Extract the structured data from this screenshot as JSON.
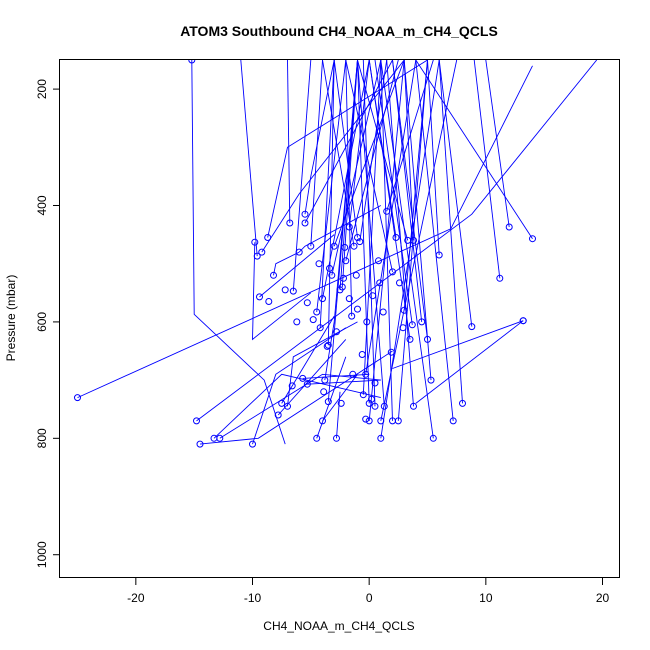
{
  "chart_data": {
    "type": "line",
    "title": "ATOM3 Southbound CH4_NOAA_m_CH4_QCLS",
    "xlabel": "CH4_NOAA_m_CH4_QCLS",
    "ylabel": "Pressure (mbar)",
    "xlim": [
      -26.5,
      21.5
    ],
    "ylim": [
      1040,
      150
    ],
    "y_reversed": true,
    "x_ticks": [
      -20,
      -10,
      0,
      10,
      20
    ],
    "x_tick_labels": [
      "-20",
      "-10",
      "0",
      "10",
      "20"
    ],
    "y_ticks": [
      200,
      400,
      600,
      800,
      1000
    ],
    "y_tick_labels": [
      "200",
      "400",
      "600",
      "800",
      "1000"
    ],
    "grid": false,
    "legend": "none",
    "color": "#0000ff",
    "marker": "open-circle",
    "series": [
      {
        "x": [
          -25.0,
          7.0,
          14.0
        ],
        "y": [
          730,
          440,
          160
        ]
      },
      {
        "x": [
          -15.2,
          -15.0,
          -9.0,
          -7.2
        ],
        "y": [
          150,
          587,
          700,
          810
        ]
      },
      {
        "x": [
          -14.8,
          8.8,
          19.5
        ],
        "y": [
          770,
          415,
          150
        ]
      },
      {
        "x": [
          -14.5,
          -9.5,
          2.0
        ],
        "y": [
          810,
          800,
          650
        ]
      },
      {
        "x": [
          -13.3,
          -7.5,
          1.0
        ],
        "y": [
          800,
          690,
          730
        ]
      },
      {
        "x": [
          -12.8,
          -4.0,
          1.0
        ],
        "y": [
          800,
          690,
          700
        ]
      },
      {
        "x": [
          -10.0,
          -8.0,
          -2.0
        ],
        "y": [
          810,
          690,
          610
        ]
      },
      {
        "x": [
          -9.8,
          -10.0,
          -5.0
        ],
        "y": [
          463,
          630,
          550
        ]
      },
      {
        "x": [
          -9.6,
          -11.0
        ],
        "y": [
          487,
          150
        ]
      },
      {
        "x": [
          -9.4,
          -3.0
        ],
        "y": [
          557,
          450
        ]
      },
      {
        "x": [
          -8.7,
          -7.0,
          5.0
        ],
        "y": [
          455,
          300,
          150
        ]
      },
      {
        "x": [
          -9.2,
          -6.0,
          3.0
        ],
        "y": [
          480,
          380,
          150
        ]
      },
      {
        "x": [
          -8.2,
          -8.0,
          -6.0
        ],
        "y": [
          520,
          500,
          480
        ]
      },
      {
        "x": [
          -7.8,
          -2.0
        ],
        "y": [
          760,
          630
        ]
      },
      {
        "x": [
          -7.5,
          -3.0
        ],
        "y": [
          740,
          590
        ]
      },
      {
        "x": [
          -7.0,
          -6.5,
          -1.0
        ],
        "y": [
          745,
          660,
          600
        ]
      },
      {
        "x": [
          -6.8,
          -7.0
        ],
        "y": [
          430,
          150
        ]
      },
      {
        "x": [
          -6.5,
          -5.0
        ],
        "y": [
          547,
          150
        ]
      },
      {
        "x": [
          -6.0,
          -5.5,
          1.0
        ],
        "y": [
          480,
          470,
          400
        ]
      },
      {
        "x": [
          -5.5,
          -5.0,
          -3.0
        ],
        "y": [
          415,
          350,
          150
        ]
      },
      {
        "x": [
          -5.7,
          0.0
        ],
        "y": [
          697,
          690
        ]
      },
      {
        "x": [
          -5.5,
          2.0
        ],
        "y": [
          430,
          150
        ]
      },
      {
        "x": [
          -5.0,
          -4.0
        ],
        "y": [
          470,
          150
        ]
      },
      {
        "x": [
          -5.3,
          1.0
        ],
        "y": [
          707,
          700
        ]
      },
      {
        "x": [
          -4.5,
          -2.0
        ],
        "y": [
          800,
          660
        ]
      },
      {
        "x": [
          -4.5,
          -2.0
        ],
        "y": [
          583,
          150
        ]
      },
      {
        "x": [
          -4.2,
          -3.0
        ],
        "y": [
          610,
          150
        ]
      },
      {
        "x": [
          -4.0,
          -1.0
        ],
        "y": [
          770,
          690
        ]
      },
      {
        "x": [
          -3.8,
          -3.0,
          -1.0
        ],
        "y": [
          700,
          600,
          150
        ]
      },
      {
        "x": [
          -4.0,
          0.0
        ],
        "y": [
          560,
          150
        ]
      },
      {
        "x": [
          -3.5,
          -3.0
        ],
        "y": [
          640,
          150
        ]
      },
      {
        "x": [
          -3.5,
          -1.0
        ],
        "y": [
          737,
          150
        ]
      },
      {
        "x": [
          -3.2,
          1.0
        ],
        "y": [
          520,
          150
        ]
      },
      {
        "x": [
          -3.0,
          3.0
        ],
        "y": [
          470,
          150
        ]
      },
      {
        "x": [
          -2.8,
          -2.5
        ],
        "y": [
          800,
          720
        ]
      },
      {
        "x": [
          -2.5,
          -1.0
        ],
        "y": [
          545,
          150
        ]
      },
      {
        "x": [
          -2.3,
          -1.0
        ],
        "y": [
          540,
          150
        ]
      },
      {
        "x": [
          -2.0,
          2.5
        ],
        "y": [
          495,
          150
        ]
      },
      {
        "x": [
          -1.5,
          -2.0
        ],
        "y": [
          590,
          150
        ]
      },
      {
        "x": [
          -1.7,
          0.0
        ],
        "y": [
          437,
          150
        ]
      },
      {
        "x": [
          -1.3,
          -4.0
        ],
        "y": [
          470,
          150
        ]
      },
      {
        "x": [
          -1.0,
          -3.0
        ],
        "y": [
          455,
          150
        ]
      },
      {
        "x": [
          -0.8,
          1.5
        ],
        "y": [
          462,
          150
        ]
      },
      {
        "x": [
          -0.5,
          1.0
        ],
        "y": [
          725,
          150
        ]
      },
      {
        "x": [
          -0.3,
          4.0
        ],
        "y": [
          690,
          150
        ]
      },
      {
        "x": [
          0.0,
          -1.0
        ],
        "y": [
          740,
          150
        ]
      },
      {
        "x": [
          0.0,
          3.0
        ],
        "y": [
          770,
          150
        ]
      },
      {
        "x": [
          0.5,
          -0.5
        ],
        "y": [
          745,
          150
        ]
      },
      {
        "x": [
          1.0,
          6.0
        ],
        "y": [
          800,
          150
        ]
      },
      {
        "x": [
          1.0,
          7.5
        ],
        "y": [
          770,
          150
        ]
      },
      {
        "x": [
          1.3,
          -1.0
        ],
        "y": [
          745,
          150
        ]
      },
      {
        "x": [
          1.5,
          5.5
        ],
        "y": [
          410,
          150
        ]
      },
      {
        "x": [
          2.0,
          1.0
        ],
        "y": [
          770,
          150
        ]
      },
      {
        "x": [
          2.0,
          -2.0
        ],
        "y": [
          514,
          150
        ]
      },
      {
        "x": [
          2.3,
          0.0
        ],
        "y": [
          455,
          150
        ]
      },
      {
        "x": [
          2.5,
          5.0
        ],
        "y": [
          770,
          150
        ]
      },
      {
        "x": [
          3.0,
          5.0
        ],
        "y": [
          580,
          150
        ]
      },
      {
        "x": [
          3.3,
          -1.0
        ],
        "y": [
          460,
          150
        ]
      },
      {
        "x": [
          3.5,
          0.0
        ],
        "y": [
          630,
          150
        ]
      },
      {
        "x": [
          3.7,
          0.5
        ],
        "y": [
          605,
          150
        ]
      },
      {
        "x": [
          3.8,
          1.5
        ],
        "y": [
          745,
          150
        ]
      },
      {
        "x": [
          3.8,
          3.0
        ],
        "y": [
          460,
          150
        ]
      },
      {
        "x": [
          4.5,
          2.0
        ],
        "y": [
          600,
          150
        ]
      },
      {
        "x": [
          5.0,
          2.0
        ],
        "y": [
          630,
          150
        ]
      },
      {
        "x": [
          5.3,
          3.0
        ],
        "y": [
          700,
          150
        ]
      },
      {
        "x": [
          5.5,
          1.0
        ],
        "y": [
          800,
          150
        ]
      },
      {
        "x": [
          6.0,
          5.0
        ],
        "y": [
          485,
          150
        ]
      },
      {
        "x": [
          7.2,
          4.0
        ],
        "y": [
          770,
          150
        ]
      },
      {
        "x": [
          8.0,
          6.0
        ],
        "y": [
          740,
          150
        ]
      },
      {
        "x": [
          8.8,
          6.0
        ],
        "y": [
          608,
          150
        ]
      },
      {
        "x": [
          11.2,
          9.0
        ],
        "y": [
          525,
          150
        ]
      },
      {
        "x": [
          12.0,
          10.0
        ],
        "y": [
          437,
          150
        ]
      },
      {
        "x": [
          13.2,
          4.0
        ],
        "y": [
          598,
          740
        ]
      },
      {
        "x": [
          13.2,
          2.0
        ],
        "y": [
          598,
          680
        ]
      },
      {
        "x": [
          14.0,
          4.0
        ],
        "y": [
          457,
          150
        ]
      }
    ],
    "extra_points": [
      {
        "x": -4.8,
        "y": 596
      },
      {
        "x": -3.4,
        "y": 508
      },
      {
        "x": -2.2,
        "y": 525
      },
      {
        "x": -1.7,
        "y": 560
      },
      {
        "x": -1.0,
        "y": 578
      },
      {
        "x": -0.2,
        "y": 600
      },
      {
        "x": 0.3,
        "y": 555
      },
      {
        "x": 0.8,
        "y": 495
      },
      {
        "x": 1.2,
        "y": 583
      },
      {
        "x": -2.8,
        "y": 617
      },
      {
        "x": -3.6,
        "y": 642
      },
      {
        "x": -6.2,
        "y": 600
      },
      {
        "x": -5.3,
        "y": 567
      },
      {
        "x": -7.2,
        "y": 545
      },
      {
        "x": -8.6,
        "y": 565
      },
      {
        "x": 2.6,
        "y": 533
      },
      {
        "x": -0.6,
        "y": 656
      },
      {
        "x": -1.4,
        "y": 690
      },
      {
        "x": 0.5,
        "y": 705
      },
      {
        "x": -2.4,
        "y": 740
      },
      {
        "x": -3.9,
        "y": 720
      },
      {
        "x": -6.6,
        "y": 710
      },
      {
        "x": -0.3,
        "y": 767
      },
      {
        "x": 0.2,
        "y": 733
      },
      {
        "x": 2.9,
        "y": 610
      },
      {
        "x": 1.9,
        "y": 652
      },
      {
        "x": -2.1,
        "y": 472
      },
      {
        "x": -4.3,
        "y": 500
      },
      {
        "x": -1.1,
        "y": 520
      },
      {
        "x": 0.9,
        "y": 533
      }
    ]
  }
}
